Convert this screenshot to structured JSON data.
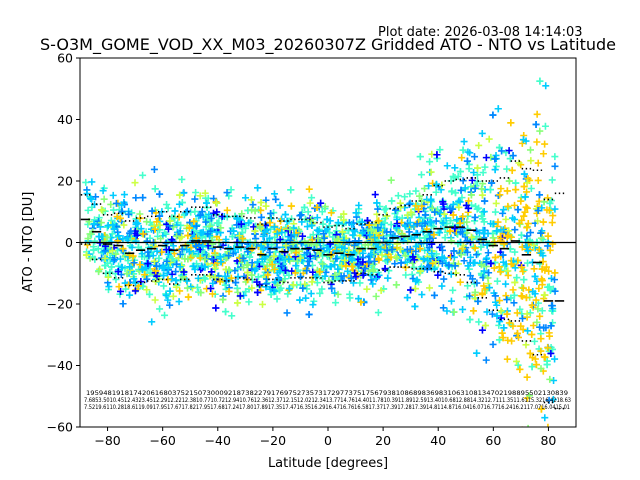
{
  "plot_date": "Plot date: 2026-03-08 14:14:03",
  "chart_data": {
    "type": "scatter",
    "title": "S-O3M_GOME_VOD_XX_M03_20260307Z Gridded ATO - NTO vs Latitude",
    "xlabel": "Latitude [degrees]",
    "ylabel": "ATO - NTO [DU]",
    "xlim": [
      -90,
      90
    ],
    "ylim": [
      -60,
      60
    ],
    "xticks": [
      -80,
      -60,
      -40,
      -20,
      0,
      20,
      40,
      60,
      80
    ],
    "yticks": [
      -60,
      -40,
      -20,
      0,
      20,
      40,
      60
    ],
    "grid": false,
    "legend": "none",
    "zero_line": 0,
    "marker": "plus",
    "colormap": [
      "#0000ff",
      "#0088ff",
      "#00ccff",
      "#44ffcc",
      "#88ff77",
      "#ccff44",
      "#ffcc00"
    ],
    "band_lat": [
      -88,
      -84,
      -80,
      -76,
      -72,
      -68,
      -64,
      -60,
      -56,
      -52,
      -48,
      -44,
      -40,
      -36,
      -32,
      -28,
      -24,
      -20,
      -16,
      -12,
      -8,
      -4,
      0,
      4,
      8,
      12,
      16,
      20,
      24,
      28,
      32,
      36,
      40,
      44,
      48,
      52,
      56,
      60,
      64,
      68,
      72,
      76,
      80,
      84
    ],
    "band_mean": [
      7.5,
      3.5,
      -0.5,
      -1,
      -3.5,
      -2.5,
      -2,
      -1,
      -2.5,
      -1,
      0.5,
      0.5,
      -1.5,
      -2,
      -1.5,
      -2,
      -4,
      -2,
      -3,
      -2,
      -2,
      -2.5,
      -4,
      -3.5,
      -4,
      -2,
      -2,
      0,
      1.5,
      2,
      2.5,
      3.5,
      4.5,
      5,
      5,
      4,
      1,
      -1,
      -2,
      0.5,
      -4,
      -6.5,
      -19,
      -19
    ],
    "band_sd": [
      8,
      9,
      9.5,
      10.5,
      10.5,
      10.5,
      10.5,
      11,
      11,
      11,
      11,
      11,
      10.5,
      10.5,
      10,
      10,
      10,
      10,
      10,
      9.5,
      9.5,
      9,
      9,
      9,
      8.5,
      8,
      8.5,
      9,
      9.5,
      10,
      11,
      12,
      14,
      15,
      15.5,
      17,
      19,
      21,
      23,
      26,
      28,
      30,
      33,
      35
    ],
    "stat_rows": {
      "row1": "1959481918174206168037521507300092187382279176975273573172977375175679381086898369831063108134702198895502130839",
      "row2": "7.6853.5010.4512.4323.4512.2912.2212.3810.7710.7212.9410.7612.3612.3712.1512.0212.3413.7714.7614.4011.7810.3911.8912.5913.4010.6812.8814.3212.7111.3511.6115.3216.4218.63",
      "row3": "7.5219.6110.2818.6119.0917.9517.6717.8217.9517.6817.2417.8017.8917.3517.4716.3516.2916.4716.7616.5817.3717.3917.2817.3914.8114.8716.0416.0716.7716.2416.2117.0716.0415.01"
    }
  }
}
